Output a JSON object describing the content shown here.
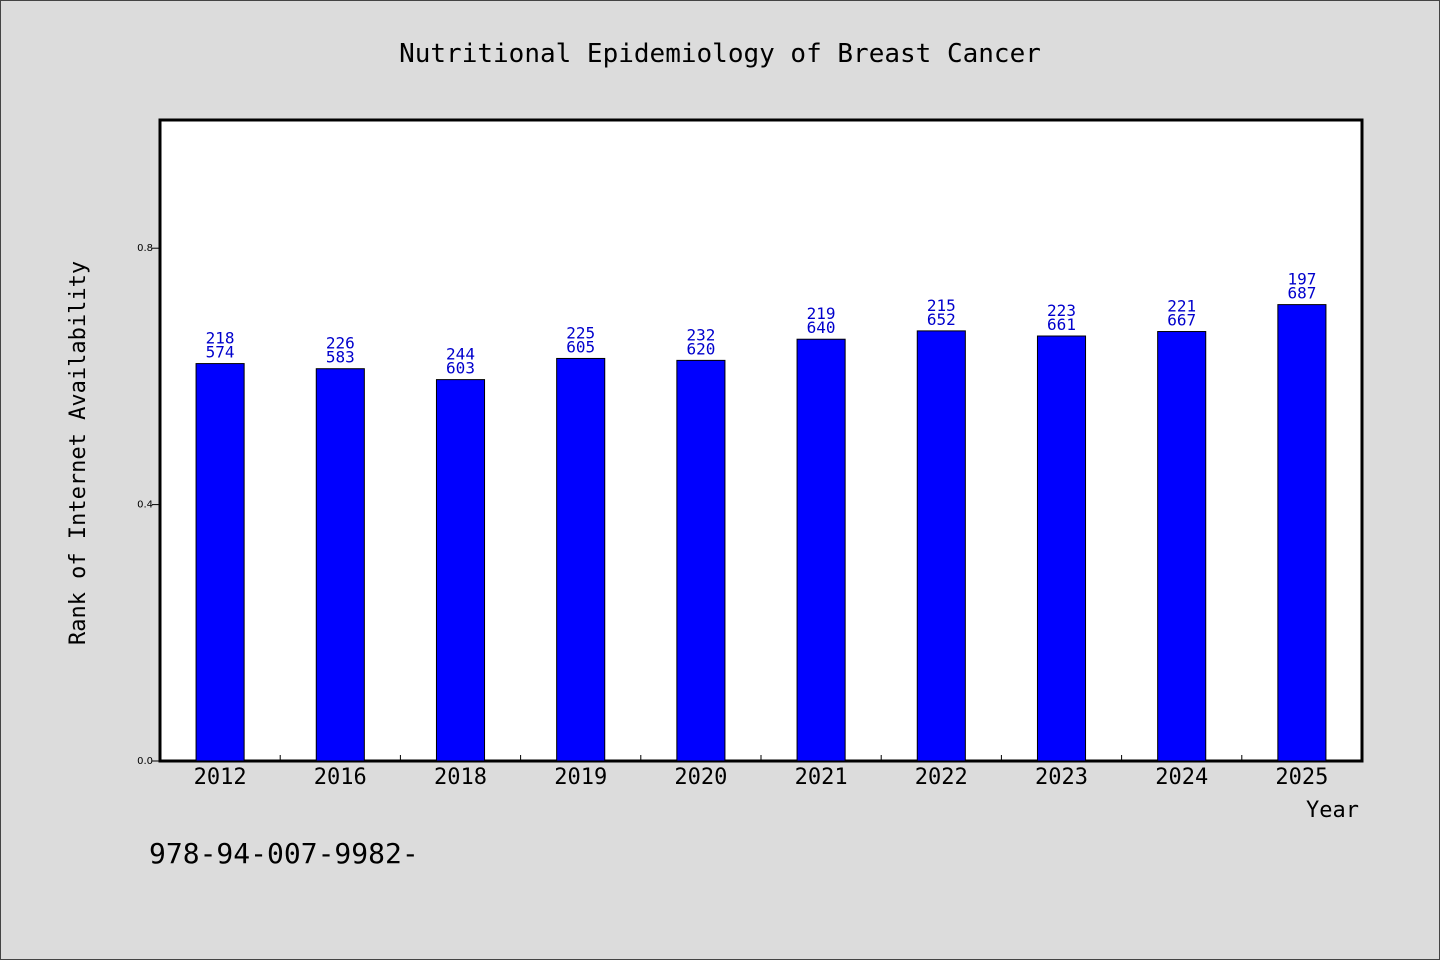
{
  "chart_data": {
    "type": "bar",
    "title": "Nutritional Epidemiology of Breast Cancer",
    "xlabel": "Year",
    "ylabel": "Rank of Internet Availability",
    "categories": [
      "2012",
      "2016",
      "2018",
      "2019",
      "2020",
      "2021",
      "2022",
      "2023",
      "2024",
      "2025"
    ],
    "values": [
      0.62,
      0.612,
      0.595,
      0.628,
      0.625,
      0.658,
      0.671,
      0.663,
      0.67,
      0.712
    ],
    "bar_labels_top": [
      "218",
      "226",
      "244",
      "225",
      "232",
      "219",
      "215",
      "223",
      "221",
      "197"
    ],
    "bar_labels_bottom": [
      "574",
      "583",
      "603",
      "605",
      "620",
      "640",
      "652",
      "661",
      "667",
      "687"
    ],
    "yticks": [
      0.0,
      0.4,
      0.8
    ],
    "ytick_labels": [
      "0.0",
      "0.4",
      "0.8"
    ],
    "ylim": [
      0.0,
      1.0
    ],
    "grid": false,
    "bar_color": "#0000ff",
    "label_color": "#0000cc",
    "background_color": "#dcdcdc",
    "plot_background": "#ffffff"
  },
  "footnote": "978-94-007-9982-"
}
